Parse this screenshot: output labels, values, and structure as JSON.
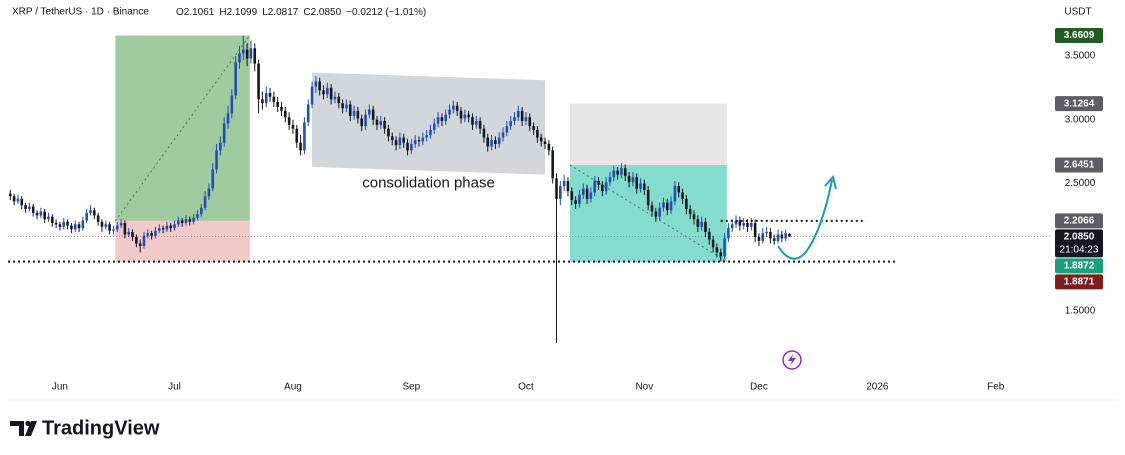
{
  "chart_data": {
    "type": "candlestick",
    "title": "XRP / TetherUS · 1D · Binance",
    "stats": [
      "O2.1061",
      "H2.1099",
      "L2.0817",
      "C2.0850",
      "−0.0212 (−1.01%)"
    ],
    "currency": "USDT",
    "annotation": "consolidation phase",
    "xlim": [
      -13.6,
      259.2
    ],
    "xticks": [
      {
        "value": 0,
        "label": "Jun"
      },
      {
        "value": 30,
        "label": "Jul"
      },
      {
        "value": 61,
        "label": "Aug"
      },
      {
        "value": 92,
        "label": "Sep"
      },
      {
        "value": 122,
        "label": "Oct"
      },
      {
        "value": 153,
        "label": "Nov"
      },
      {
        "value": 183,
        "label": "Dec"
      },
      {
        "value": 214,
        "label": "2026"
      },
      {
        "value": 245,
        "label": "Feb"
      }
    ],
    "ylim": [
      1.022,
      3.939
    ],
    "yticks": [
      {
        "value": 3.5,
        "label": "3.5000"
      },
      {
        "value": 3,
        "label": "3.0000"
      },
      {
        "value": 2.5,
        "label": "2.5000"
      },
      {
        "value": 1.5,
        "label": "1.5000"
      }
    ],
    "candles": {
      "up_color": "#1f4fb4",
      "down_color": "#15181f",
      "x": [
        -13,
        -12,
        -11,
        -10,
        -9,
        -8,
        -7,
        -6,
        -5,
        -4,
        -3,
        -2,
        -1,
        0,
        1,
        2,
        3,
        4,
        5,
        6,
        7,
        8,
        9,
        10,
        11,
        12,
        13,
        14,
        15,
        16,
        17,
        18,
        19,
        20,
        21,
        22,
        23,
        24,
        25,
        26,
        27,
        28,
        29,
        30,
        31,
        32,
        33,
        34,
        35,
        36,
        37,
        38,
        39,
        40,
        41,
        42,
        43,
        44,
        45,
        46,
        47,
        48,
        49,
        50,
        51,
        52,
        53,
        54,
        55,
        56,
        57,
        58,
        59,
        60,
        61,
        62,
        63,
        64,
        65,
        66,
        67,
        68,
        69,
        70,
        71,
        72,
        73,
        74,
        75,
        76,
        77,
        78,
        79,
        80,
        81,
        82,
        83,
        84,
        85,
        86,
        87,
        88,
        89,
        90,
        91,
        92,
        93,
        94,
        95,
        96,
        97,
        98,
        99,
        100,
        101,
        102,
        103,
        104,
        105,
        106,
        107,
        108,
        109,
        110,
        111,
        112,
        113,
        114,
        115,
        116,
        117,
        118,
        119,
        120,
        121,
        122,
        123,
        124,
        125,
        126,
        127,
        128,
        129,
        130,
        131,
        132,
        133,
        134,
        135,
        136,
        137,
        138,
        139,
        140,
        141,
        142,
        143,
        144,
        145,
        146,
        147,
        148,
        149,
        150,
        151,
        152,
        153,
        154,
        155,
        156,
        157,
        158,
        159,
        160,
        161,
        162,
        163,
        164,
        165,
        166,
        167,
        168,
        169,
        170,
        171,
        172,
        173,
        174,
        175,
        176,
        177,
        178,
        179,
        180,
        181,
        182,
        183,
        184,
        185,
        186,
        187,
        188,
        189,
        190,
        191
      ],
      "open": [
        2.42,
        2.4,
        2.36,
        2.38,
        2.33,
        2.3,
        2.32,
        2.27,
        2.25,
        2.28,
        2.22,
        2.24,
        2.19,
        2.18,
        2.16,
        2.2,
        2.17,
        2.14,
        2.18,
        2.15,
        2.21,
        2.27,
        2.29,
        2.25,
        2.2,
        2.16,
        2.18,
        2.13,
        2.14,
        2.17,
        2.19,
        2.1,
        2.12,
        2.08,
        2.03,
        2.01,
        2.09,
        2.11,
        2.09,
        2.13,
        2.15,
        2.14,
        2.17,
        2.15,
        2.18,
        2.21,
        2.19,
        2.22,
        2.2,
        2.23,
        2.26,
        2.31,
        2.4,
        2.46,
        2.61,
        2.76,
        2.82,
        2.97,
        3.05,
        3.19,
        3.45,
        3.52,
        3.55,
        3.48,
        3.56,
        3.44,
        3.16,
        3.13,
        3.21,
        3.18,
        3.14,
        3.1,
        3.07,
        3.02,
        2.96,
        2.93,
        2.82,
        2.76,
        2.98,
        3.12,
        3.26,
        3.3,
        3.23,
        3.2,
        3.25,
        3.16,
        3.18,
        3.13,
        3.09,
        3.12,
        3.03,
        3.07,
        3.01,
        2.95,
        3.04,
        3.08,
        3.0,
        2.96,
        2.99,
        2.93,
        2.87,
        2.84,
        2.8,
        2.86,
        2.82,
        2.76,
        2.81,
        2.84,
        2.83,
        2.86,
        2.88,
        2.92,
        2.97,
        3.02,
        2.99,
        3.04,
        3.08,
        3.11,
        3.07,
        3.01,
        3.04,
        3.02,
        2.96,
        2.99,
        2.93,
        2.86,
        2.79,
        2.84,
        2.81,
        2.86,
        2.9,
        2.95,
        2.99,
        3.02,
        3.07,
        2.99,
        3.02,
        2.95,
        2.92,
        2.86,
        2.83,
        2.81,
        2.76,
        2.54,
        2.38,
        2.48,
        2.52,
        2.44,
        2.37,
        2.34,
        2.41,
        2.46,
        2.38,
        2.43,
        2.52,
        2.49,
        2.44,
        2.51,
        2.55,
        2.6,
        2.57,
        2.62,
        2.56,
        2.51,
        2.55,
        2.46,
        2.5,
        2.45,
        2.33,
        2.28,
        2.24,
        2.31,
        2.35,
        2.29,
        2.36,
        2.48,
        2.43,
        2.38,
        2.3,
        2.26,
        2.22,
        2.16,
        2.2,
        2.12,
        2.06,
        2.0,
        1.96,
        1.93,
        2.07,
        2.15,
        2.18,
        2.21,
        2.17,
        2.19,
        2.16,
        2.19,
        2.08,
        2.05,
        2.11,
        2.12,
        2.07,
        2.05,
        2.1,
        2.07,
        2.1061
      ],
      "high": [
        2.45,
        2.42,
        2.41,
        2.4,
        2.35,
        2.35,
        2.34,
        2.29,
        2.31,
        2.3,
        2.27,
        2.26,
        2.22,
        2.2,
        2.23,
        2.22,
        2.19,
        2.21,
        2.2,
        2.24,
        2.3,
        2.33,
        2.31,
        2.27,
        2.22,
        2.21,
        2.2,
        2.17,
        2.2,
        2.22,
        2.21,
        2.15,
        2.14,
        2.1,
        2.06,
        2.12,
        2.14,
        2.13,
        2.16,
        2.18,
        2.17,
        2.2,
        2.19,
        2.21,
        2.24,
        2.23,
        2.25,
        2.24,
        2.26,
        2.29,
        2.34,
        2.44,
        2.5,
        2.66,
        2.81,
        2.87,
        3.02,
        3.11,
        3.24,
        3.5,
        3.58,
        3.66,
        3.6,
        3.62,
        3.6,
        3.47,
        3.22,
        3.26,
        3.25,
        3.22,
        3.18,
        3.14,
        3.1,
        3.06,
        3.0,
        2.96,
        2.88,
        3.02,
        3.16,
        3.3,
        3.34,
        3.33,
        3.27,
        3.29,
        3.28,
        3.22,
        3.21,
        3.16,
        3.16,
        3.15,
        3.11,
        3.1,
        3.04,
        3.08,
        3.12,
        3.11,
        3.03,
        3.03,
        3.02,
        2.96,
        2.9,
        2.87,
        2.9,
        2.89,
        2.85,
        2.85,
        2.88,
        2.87,
        2.9,
        2.92,
        2.96,
        3.01,
        3.06,
        3.05,
        3.08,
        3.12,
        3.15,
        3.14,
        3.1,
        3.08,
        3.07,
        3.05,
        3.03,
        3.02,
        2.96,
        2.89,
        2.88,
        2.87,
        2.9,
        2.94,
        2.99,
        3.03,
        3.06,
        3.11,
        3.1,
        3.06,
        3.05,
        2.98,
        2.95,
        2.89,
        2.86,
        2.84,
        2.79,
        2.58,
        2.52,
        2.57,
        2.55,
        2.47,
        2.4,
        2.45,
        2.5,
        2.49,
        2.47,
        2.56,
        2.55,
        2.52,
        2.55,
        2.59,
        2.64,
        2.63,
        2.66,
        2.65,
        2.59,
        2.59,
        2.58,
        2.54,
        2.53,
        2.48,
        2.36,
        2.31,
        2.35,
        2.39,
        2.38,
        2.4,
        2.52,
        2.51,
        2.46,
        2.41,
        2.33,
        2.29,
        2.25,
        2.24,
        2.23,
        2.15,
        2.09,
        2.03,
        1.99,
        2.11,
        2.19,
        2.22,
        2.25,
        2.24,
        2.23,
        2.22,
        2.23,
        2.22,
        2.11,
        2.15,
        2.16,
        2.15,
        2.1,
        2.14,
        2.13,
        2.14,
        2.1099
      ],
      "low": [
        2.37,
        2.33,
        2.34,
        2.3,
        2.27,
        2.28,
        2.24,
        2.22,
        2.23,
        2.19,
        2.2,
        2.16,
        2.15,
        2.13,
        2.14,
        2.14,
        2.11,
        2.12,
        2.12,
        2.13,
        2.19,
        2.25,
        2.22,
        2.17,
        2.12,
        2.14,
        2.1,
        2.1,
        2.12,
        2.15,
        2.07,
        2.08,
        2.05,
        2.0,
        1.96,
        1.99,
        2.07,
        2.06,
        2.07,
        2.11,
        2.11,
        2.12,
        2.12,
        2.13,
        2.16,
        2.16,
        2.17,
        2.17,
        2.18,
        2.21,
        2.24,
        2.29,
        2.37,
        2.44,
        2.58,
        2.72,
        2.79,
        2.93,
        3.01,
        3.16,
        3.4,
        3.47,
        3.42,
        3.44,
        3.38,
        3.05,
        3.08,
        3.1,
        3.14,
        3.1,
        3.06,
        3.03,
        2.98,
        2.92,
        2.89,
        2.78,
        2.72,
        2.73,
        2.95,
        3.09,
        3.21,
        3.19,
        3.16,
        3.17,
        3.12,
        3.13,
        3.09,
        3.05,
        3.06,
        2.99,
        3.0,
        2.97,
        2.91,
        2.92,
        3.01,
        2.96,
        2.92,
        2.93,
        2.89,
        2.83,
        2.8,
        2.76,
        2.77,
        2.78,
        2.72,
        2.73,
        2.78,
        2.79,
        2.8,
        2.83,
        2.85,
        2.89,
        2.94,
        2.95,
        2.96,
        3.01,
        3.05,
        3.03,
        2.97,
        2.98,
        2.98,
        2.92,
        2.93,
        2.89,
        2.82,
        2.75,
        2.76,
        2.77,
        2.78,
        2.83,
        2.87,
        2.92,
        2.96,
        2.99,
        2.95,
        2.96,
        2.91,
        2.88,
        2.82,
        2.79,
        2.77,
        2.72,
        2.5,
        1.25,
        2.33,
        2.44,
        2.4,
        2.33,
        2.3,
        2.31,
        2.38,
        2.34,
        2.35,
        2.4,
        2.45,
        2.4,
        2.41,
        2.48,
        2.52,
        2.53,
        2.54,
        2.52,
        2.47,
        2.48,
        2.42,
        2.43,
        2.41,
        2.29,
        2.24,
        2.2,
        2.21,
        2.28,
        2.25,
        2.26,
        2.33,
        2.39,
        2.34,
        2.26,
        2.22,
        2.18,
        2.12,
        2.13,
        2.08,
        2.02,
        1.96,
        1.92,
        1.89,
        1.91,
        2.04,
        2.12,
        2.15,
        2.13,
        2.14,
        2.12,
        2.13,
        2.04,
        2.01,
        2.03,
        2.08,
        2.03,
        2.02,
        2.03,
        2.04,
        2.05,
        2.0817
      ],
      "close": [
        2.4,
        2.36,
        2.38,
        2.33,
        2.3,
        2.32,
        2.27,
        2.25,
        2.28,
        2.22,
        2.24,
        2.19,
        2.18,
        2.16,
        2.2,
        2.17,
        2.14,
        2.18,
        2.15,
        2.21,
        2.27,
        2.29,
        2.25,
        2.2,
        2.16,
        2.18,
        2.13,
        2.14,
        2.17,
        2.19,
        2.1,
        2.12,
        2.08,
        2.03,
        2.01,
        2.09,
        2.11,
        2.09,
        2.13,
        2.15,
        2.14,
        2.17,
        2.15,
        2.18,
        2.21,
        2.19,
        2.22,
        2.2,
        2.23,
        2.26,
        2.31,
        2.4,
        2.46,
        2.61,
        2.76,
        2.82,
        2.97,
        3.05,
        3.19,
        3.45,
        3.52,
        3.55,
        3.48,
        3.56,
        3.44,
        3.16,
        3.13,
        3.21,
        3.18,
        3.14,
        3.1,
        3.07,
        3.02,
        2.96,
        2.93,
        2.82,
        2.76,
        2.98,
        3.12,
        3.26,
        3.3,
        3.23,
        3.2,
        3.25,
        3.16,
        3.18,
        3.13,
        3.09,
        3.12,
        3.03,
        3.07,
        3.01,
        2.95,
        3.04,
        3.08,
        3.0,
        2.96,
        2.99,
        2.93,
        2.87,
        2.84,
        2.8,
        2.86,
        2.82,
        2.76,
        2.81,
        2.84,
        2.83,
        2.86,
        2.88,
        2.92,
        2.97,
        3.02,
        2.99,
        3.04,
        3.08,
        3.11,
        3.07,
        3.01,
        3.04,
        3.02,
        2.96,
        2.99,
        2.93,
        2.86,
        2.79,
        2.84,
        2.81,
        2.86,
        2.9,
        2.95,
        2.99,
        3.02,
        3.07,
        2.99,
        3.02,
        2.95,
        2.92,
        2.86,
        2.83,
        2.81,
        2.76,
        2.54,
        2.38,
        2.48,
        2.52,
        2.44,
        2.37,
        2.34,
        2.41,
        2.46,
        2.38,
        2.43,
        2.52,
        2.49,
        2.44,
        2.51,
        2.55,
        2.6,
        2.57,
        2.62,
        2.56,
        2.51,
        2.55,
        2.46,
        2.5,
        2.45,
        2.33,
        2.28,
        2.24,
        2.31,
        2.35,
        2.29,
        2.36,
        2.48,
        2.43,
        2.38,
        2.3,
        2.26,
        2.22,
        2.16,
        2.2,
        2.12,
        2.06,
        2.0,
        1.96,
        1.93,
        2.07,
        2.15,
        2.18,
        2.21,
        2.17,
        2.19,
        2.16,
        2.19,
        2.08,
        2.05,
        2.11,
        2.12,
        2.07,
        2.05,
        2.1,
        2.07,
        2.11,
        2.085
      ]
    },
    "positions": [
      {
        "x": [
          14.5,
          49.7
        ],
        "entry": 2.2066,
        "target": 3.6609,
        "stop": 1.8871,
        "profit_color": "#8fc28d",
        "loss_color": "#f0c0c0"
      },
      {
        "x": [
          133.5,
          174.6
        ],
        "entry": 2.6451,
        "target": 1.8872,
        "stop": 3.1264,
        "profit_color": "#6fd6c4",
        "loss_color": "#e3e3e3"
      }
    ],
    "channel": {
      "x": [
        66,
        127
      ],
      "top": [
        3.37,
        3.31
      ],
      "bottom": [
        2.63,
        2.57
      ],
      "color": "#c9d0d4"
    },
    "dotted_lines": [
      {
        "value": 2.2066,
        "x": [
          173,
          211
        ]
      },
      {
        "value": 1.8872,
        "x": [
          -13.6,
          218.6
        ]
      }
    ],
    "price_tags": [
      {
        "value": 3.6609,
        "color": "#1b5e20"
      },
      {
        "value": 3.1264,
        "color": "#5b5e66"
      },
      {
        "value": 2.6451,
        "color": "#5b5e66"
      },
      {
        "value": 2.2066,
        "color": "#5b5e66"
      },
      {
        "value": 2.085,
        "label": "2.0850",
        "countdown": "21:04:23",
        "color": "#131722"
      },
      {
        "value": 1.8872,
        "color": "#17a07a"
      },
      {
        "value": 1.8871,
        "color": "#7f1d1d"
      }
    ]
  },
  "brand": "TradingView"
}
